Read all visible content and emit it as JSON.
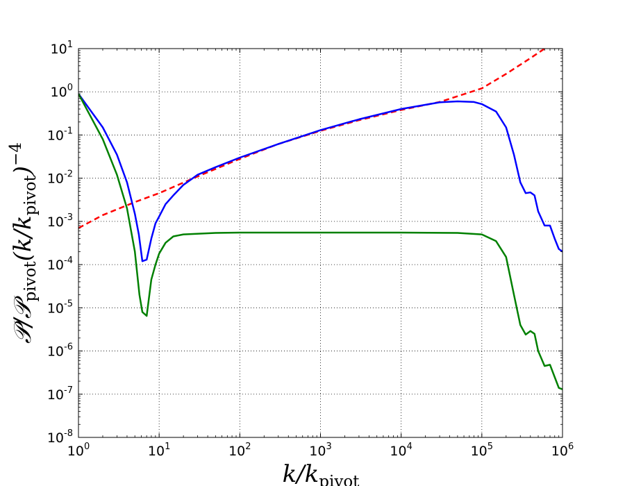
{
  "chart_data": {
    "type": "line",
    "x_scale": "log",
    "y_scale": "log",
    "xlim": [
      1,
      1000000
    ],
    "ylim": [
      1e-08,
      10
    ],
    "grid": true,
    "grid_style": "dotted",
    "xlabel": {
      "main": "k/k",
      "sub": "pivot"
    },
    "ylabel": {
      "p1": "𝒫/𝒫",
      "sub1": "pivot",
      "p2": "(k/k",
      "sub2": "pivot",
      "p3": ")",
      "sup": "−4"
    },
    "x_ticks": [
      {
        "value": 1,
        "base": "10",
        "exp": "0"
      },
      {
        "value": 10,
        "base": "10",
        "exp": "1"
      },
      {
        "value": 100,
        "base": "10",
        "exp": "2"
      },
      {
        "value": 1000,
        "base": "10",
        "exp": "3"
      },
      {
        "value": 10000,
        "base": "10",
        "exp": "4"
      },
      {
        "value": 100000,
        "base": "10",
        "exp": "5"
      },
      {
        "value": 1000000,
        "base": "10",
        "exp": "6"
      }
    ],
    "y_ticks": [
      {
        "value": 10,
        "base": "10",
        "exp": "1"
      },
      {
        "value": 1,
        "base": "10",
        "exp": "0"
      },
      {
        "value": 0.1,
        "base": "10",
        "exp": "-1"
      },
      {
        "value": 0.01,
        "base": "10",
        "exp": "-2"
      },
      {
        "value": 0.001,
        "base": "10",
        "exp": "-3"
      },
      {
        "value": 0.0001,
        "base": "10",
        "exp": "-4"
      },
      {
        "value": 1e-05,
        "base": "10",
        "exp": "-5"
      },
      {
        "value": 1e-06,
        "base": "10",
        "exp": "-6"
      },
      {
        "value": 1e-07,
        "base": "10",
        "exp": "-7"
      },
      {
        "value": 1e-08,
        "base": "10",
        "exp": "-8"
      }
    ],
    "series": [
      {
        "color": "#ff0000",
        "style": "dashed",
        "points": [
          [
            1,
            0.0007
          ],
          [
            2,
            0.0014
          ],
          [
            5,
            0.0028
          ],
          [
            10,
            0.0045
          ],
          [
            30,
            0.011
          ],
          [
            100,
            0.028
          ],
          [
            300,
            0.062
          ],
          [
            1000,
            0.125
          ],
          [
            3000,
            0.22
          ],
          [
            10000,
            0.38
          ],
          [
            30000,
            0.58
          ],
          [
            100000,
            1.2
          ],
          [
            200000,
            2.6
          ],
          [
            400000,
            6.0
          ],
          [
            600000,
            10.0
          ]
        ]
      },
      {
        "color": "#0000ff",
        "style": "solid",
        "points": [
          [
            1,
            0.9
          ],
          [
            2,
            0.15
          ],
          [
            3,
            0.035
          ],
          [
            4,
            0.008
          ],
          [
            5,
            0.0015
          ],
          [
            5.6,
            0.0005
          ],
          [
            6.2,
            0.00012
          ],
          [
            7,
            0.00013
          ],
          [
            8,
            0.0004
          ],
          [
            9,
            0.0009
          ],
          [
            10,
            0.0013
          ],
          [
            12,
            0.0025
          ],
          [
            15,
            0.004
          ],
          [
            20,
            0.007
          ],
          [
            30,
            0.012
          ],
          [
            50,
            0.018
          ],
          [
            100,
            0.03
          ],
          [
            300,
            0.062
          ],
          [
            1000,
            0.13
          ],
          [
            3000,
            0.23
          ],
          [
            10000,
            0.4
          ],
          [
            30000,
            0.57
          ],
          [
            50000,
            0.6
          ],
          [
            80000,
            0.58
          ],
          [
            100000,
            0.52
          ],
          [
            150000,
            0.35
          ],
          [
            200000,
            0.15
          ],
          [
            250000,
            0.035
          ],
          [
            300000,
            0.008
          ],
          [
            350000,
            0.0045
          ],
          [
            400000,
            0.0047
          ],
          [
            450000,
            0.004
          ],
          [
            500000,
            0.0017
          ],
          [
            600000,
            0.0008
          ],
          [
            700000,
            0.0008
          ],
          [
            800000,
            0.0004
          ],
          [
            900000,
            0.00023
          ],
          [
            1000000,
            0.0002
          ]
        ]
      },
      {
        "color": "#008000",
        "style": "solid",
        "points": [
          [
            1,
            0.9
          ],
          [
            2,
            0.08
          ],
          [
            3,
            0.012
          ],
          [
            4,
            0.002
          ],
          [
            5,
            0.0002
          ],
          [
            5.7,
            2e-05
          ],
          [
            6.2,
            8e-06
          ],
          [
            7,
            6.5e-06
          ],
          [
            8,
            4.5e-05
          ],
          [
            9,
            0.0001
          ],
          [
            10,
            0.00018
          ],
          [
            12,
            0.00032
          ],
          [
            15,
            0.00045
          ],
          [
            20,
            0.0005
          ],
          [
            50,
            0.00054
          ],
          [
            100,
            0.00055
          ],
          [
            1000,
            0.00055
          ],
          [
            10000,
            0.00055
          ],
          [
            50000,
            0.00054
          ],
          [
            100000,
            0.0005
          ],
          [
            150000,
            0.00035
          ],
          [
            200000,
            0.00015
          ],
          [
            250000,
            2e-05
          ],
          [
            300000,
            4e-06
          ],
          [
            350000,
            2.4e-06
          ],
          [
            400000,
            2.9e-06
          ],
          [
            450000,
            2.5e-06
          ],
          [
            500000,
            1e-06
          ],
          [
            600000,
            4.5e-07
          ],
          [
            700000,
            4.8e-07
          ],
          [
            800000,
            2.5e-07
          ],
          [
            900000,
            1.4e-07
          ],
          [
            1000000,
            1.3e-07
          ]
        ]
      }
    ]
  }
}
